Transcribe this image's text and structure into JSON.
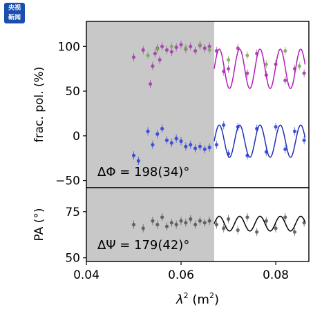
{
  "watermark": {
    "line1": "央视",
    "line2": "新闻"
  },
  "chart_data": [
    {
      "type": "scatter",
      "panel": "top",
      "xlabel": "λ² (m²)",
      "ylabel": "frac. pol. (%)",
      "xlim": [
        0.04,
        0.087
      ],
      "ylim": [
        -58,
        128
      ],
      "yticks": [
        -50,
        0,
        50,
        100
      ],
      "shaded_region_x": [
        0.04,
        0.067
      ],
      "annotation": "ΔΦ = 198(34)°",
      "series": [
        {
          "color": "#a03aa8",
          "x": [
            0.05,
            0.052,
            0.0535,
            0.054,
            0.0545,
            0.055,
            0.0555,
            0.056,
            0.057,
            0.058,
            0.059,
            0.06,
            0.061,
            0.062,
            0.063,
            0.064,
            0.065,
            0.066,
            0.0675,
            0.069,
            0.07,
            0.072,
            0.074,
            0.076,
            0.078,
            0.08,
            0.082,
            0.084,
            0.086
          ],
          "y": [
            88,
            96,
            58,
            78,
            92,
            98,
            85,
            100,
            96,
            94,
            99,
            102,
            97,
            100,
            95,
            101,
            98,
            100,
            95,
            72,
            75,
            98,
            70,
            92,
            68,
            80,
            62,
            75,
            70
          ]
        },
        {
          "color": "#7ea35a",
          "x": [
            0.053,
            0.055,
            0.058,
            0.061,
            0.064,
            0.066,
            0.07,
            0.074,
            0.078,
            0.082,
            0.085
          ],
          "y": [
            90,
            97,
            100,
            98,
            102,
            96,
            85,
            90,
            80,
            95,
            78
          ]
        },
        {
          "color": "#2c3fd8",
          "x": [
            0.05,
            0.051,
            0.053,
            0.054,
            0.055,
            0.056,
            0.057,
            0.058,
            0.059,
            0.06,
            0.061,
            0.062,
            0.063,
            0.064,
            0.065,
            0.066,
            0.0675,
            0.069,
            0.07,
            0.072,
            0.074,
            0.076,
            0.078,
            0.08,
            0.082,
            0.084,
            0.086
          ],
          "y": [
            -22,
            -28,
            5,
            -10,
            2,
            8,
            -5,
            -8,
            -3,
            -6,
            -12,
            -10,
            -14,
            -12,
            -15,
            -13,
            -10,
            12,
            -20,
            10,
            -22,
            8,
            -18,
            10,
            -15,
            5,
            -5
          ]
        }
      ],
      "model_fits": [
        {
          "color": "#b21cb8",
          "mean": 75,
          "amplitude": 22,
          "period": 0.0043,
          "x_start": 0.067
        },
        {
          "color": "#1f2fb6",
          "mean": -6,
          "amplitude": 18,
          "period": 0.0043,
          "x_start": 0.067
        }
      ]
    },
    {
      "type": "scatter",
      "panel": "bottom",
      "xlabel": "λ² (m²)",
      "ylabel": "PA (°)",
      "xlim": [
        0.04,
        0.087
      ],
      "ylim": [
        48,
        88
      ],
      "yticks": [
        50,
        75
      ],
      "xticks": [
        0.04,
        0.06,
        0.08
      ],
      "shaded_region_x": [
        0.04,
        0.067
      ],
      "annotation": "ΔΨ = 179(42)°",
      "series": [
        {
          "color": "#555555",
          "x": [
            0.05,
            0.052,
            0.054,
            0.055,
            0.056,
            0.057,
            0.058,
            0.059,
            0.06,
            0.061,
            0.062,
            0.063,
            0.064,
            0.065,
            0.066,
            0.0675,
            0.069,
            0.07,
            0.072,
            0.074,
            0.076,
            0.078,
            0.08,
            0.082,
            0.084,
            0.086
          ],
          "y": [
            68,
            66,
            70,
            68,
            72,
            67,
            69,
            68,
            70,
            69,
            71,
            68,
            70,
            69,
            70,
            68,
            66,
            71,
            65,
            72,
            64,
            70,
            66,
            72,
            64,
            69
          ]
        }
      ],
      "model_fits": [
        {
          "color": "#000000",
          "mean": 68.5,
          "amplitude": 4,
          "period": 0.0043,
          "x_start": 0.067
        }
      ]
    }
  ],
  "labels": {
    "xlabel_base": "λ",
    "xlabel_sup": "2",
    "xlabel_unit": " (m",
    "xlabel_unit_sup": "2",
    "xlabel_close": ")",
    "top_ylabel": "frac. pol. (%)",
    "bottom_ylabel": "PA (°)",
    "top_annotation": "ΔΦ = 198(34)°",
    "bottom_annotation": "ΔΨ = 179(42)°"
  }
}
